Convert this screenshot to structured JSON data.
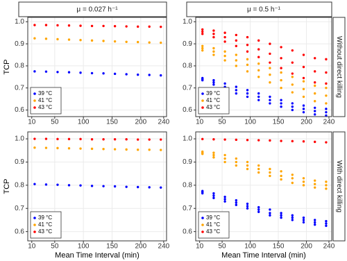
{
  "chart_data": [
    {
      "type": "scatter",
      "title": "μ = 0.027 h⁻¹",
      "y_label": "TCP",
      "xlim": [
        3,
        245
      ],
      "xticks": [
        10,
        50,
        100,
        150,
        200,
        240
      ],
      "ylim": [
        0.57,
        1.02
      ],
      "yticks": [
        0.6,
        0.7,
        0.8,
        0.9,
        {
          "value": 1,
          "label": "1.0"
        }
      ],
      "grid": true,
      "legend": "bottom-left",
      "series": [
        {
          "name": "39 °C",
          "color": "#0000ff",
          "x": [
            15,
            35,
            55,
            75,
            95,
            115,
            135,
            155,
            175,
            195,
            215,
            235
          ],
          "values": [
            0.775,
            0.774,
            0.772,
            0.771,
            0.769,
            0.767,
            0.766,
            0.764,
            0.762,
            0.76,
            0.759,
            0.757
          ]
        },
        {
          "name": "41 °C",
          "color": "#ffa500",
          "x": [
            15,
            35,
            55,
            75,
            95,
            115,
            135,
            155,
            175,
            195,
            215,
            235
          ],
          "values": [
            0.925,
            0.923,
            0.921,
            0.919,
            0.917,
            0.915,
            0.913,
            0.911,
            0.909,
            0.908,
            0.906,
            0.905
          ]
        },
        {
          "name": "43 °C",
          "color": "#ff0000",
          "x": [
            15,
            35,
            55,
            75,
            95,
            115,
            135,
            155,
            175,
            195,
            215,
            235
          ],
          "values": [
            0.985,
            0.985,
            0.984,
            0.983,
            0.982,
            0.981,
            0.981,
            0.98,
            0.979,
            0.978,
            0.978,
            0.977
          ]
        }
      ]
    },
    {
      "type": "scatter",
      "title": "μ = 0.5 h⁻¹",
      "row_label": "Without direct killing",
      "xlim": [
        3,
        245
      ],
      "xticks": [
        10,
        50,
        100,
        150,
        200,
        240
      ],
      "ylim": [
        0.57,
        1.02
      ],
      "yticks": [
        0.6,
        0.7,
        0.8,
        0.9,
        {
          "value": 1,
          "label": "1.0"
        }
      ],
      "grid": true,
      "legend": "bottom-left",
      "series": [
        {
          "name": "39 °C",
          "color": "#0000ff",
          "x": [
            15,
            35,
            55,
            75,
            95,
            115,
            135,
            155,
            175,
            195,
            215,
            235,
            15,
            35,
            55,
            75,
            95,
            115,
            135,
            155,
            175,
            195,
            215,
            235,
            15,
            35,
            55,
            75,
            95,
            115,
            135,
            155,
            175,
            195,
            215,
            235
          ],
          "values": [
            0.745,
            0.735,
            0.72,
            0.705,
            0.69,
            0.675,
            0.66,
            0.645,
            0.63,
            0.62,
            0.61,
            0.605,
            0.74,
            0.725,
            0.705,
            0.69,
            0.675,
            0.66,
            0.645,
            0.63,
            0.615,
            0.605,
            0.595,
            0.59,
            0.735,
            0.715,
            0.695,
            0.675,
            0.66,
            0.645,
            0.63,
            0.615,
            0.6,
            0.59,
            0.58,
            0.575
          ]
        },
        {
          "name": "41 °C",
          "color": "#ffa500",
          "x": [
            15,
            35,
            55,
            75,
            95,
            115,
            135,
            155,
            175,
            195,
            215,
            235,
            15,
            35,
            55,
            75,
            95,
            115,
            135,
            155,
            175,
            195,
            215,
            235,
            15,
            35,
            55,
            75,
            95,
            115,
            135,
            155,
            175,
            195,
            215,
            235
          ],
          "values": [
            0.89,
            0.88,
            0.865,
            0.85,
            0.83,
            0.81,
            0.79,
            0.77,
            0.75,
            0.73,
            0.71,
            0.7,
            0.88,
            0.865,
            0.845,
            0.825,
            0.805,
            0.78,
            0.76,
            0.735,
            0.715,
            0.695,
            0.675,
            0.665,
            0.87,
            0.85,
            0.825,
            0.8,
            0.775,
            0.75,
            0.725,
            0.7,
            0.68,
            0.66,
            0.64,
            0.63
          ]
        },
        {
          "name": "43 °C",
          "color": "#ff0000",
          "x": [
            15,
            35,
            55,
            75,
            95,
            115,
            135,
            155,
            175,
            195,
            215,
            235,
            15,
            35,
            55,
            75,
            95,
            115,
            135,
            155,
            175,
            195,
            215,
            235,
            15,
            35,
            55,
            75,
            95,
            115,
            135,
            155,
            175,
            195,
            215,
            235
          ],
          "values": [
            0.965,
            0.96,
            0.95,
            0.94,
            0.93,
            0.915,
            0.9,
            0.885,
            0.87,
            0.85,
            0.835,
            0.83,
            0.955,
            0.945,
            0.93,
            0.915,
            0.895,
            0.875,
            0.855,
            0.835,
            0.815,
            0.795,
            0.775,
            0.77,
            0.945,
            0.93,
            0.91,
            0.89,
            0.865,
            0.84,
            0.815,
            0.79,
            0.765,
            0.745,
            0.725,
            0.72
          ]
        }
      ]
    },
    {
      "type": "scatter",
      "y_label": "TCP",
      "x_label": "Mean Time Interval (min)",
      "xlim": [
        3,
        245
      ],
      "xticks": [
        10,
        50,
        100,
        150,
        200,
        240
      ],
      "ylim": [
        0.56,
        1.03
      ],
      "yticks": [
        0.6,
        0.7,
        0.8,
        0.9,
        {
          "value": 1,
          "label": "1.0"
        }
      ],
      "grid": true,
      "legend": "bottom-left",
      "series": [
        {
          "name": "39 °C",
          "color": "#0000ff",
          "x": [
            15,
            35,
            55,
            75,
            95,
            115,
            135,
            155,
            175,
            195,
            215,
            235
          ],
          "values": [
            0.805,
            0.803,
            0.802,
            0.8,
            0.799,
            0.797,
            0.796,
            0.795,
            0.793,
            0.792,
            0.791,
            0.79
          ]
        },
        {
          "name": "41 °C",
          "color": "#ffa500",
          "x": [
            15,
            35,
            55,
            75,
            95,
            115,
            135,
            155,
            175,
            195,
            215,
            235
          ],
          "values": [
            0.962,
            0.961,
            0.96,
            0.959,
            0.958,
            0.957,
            0.956,
            0.955,
            0.954,
            0.953,
            0.953,
            0.952
          ]
        },
        {
          "name": "43 °C",
          "color": "#ff0000",
          "x": [
            15,
            35,
            55,
            75,
            95,
            115,
            135,
            155,
            175,
            195,
            215,
            235
          ],
          "values": [
            1,
            1,
            0.999,
            0.999,
            0.999,
            0.998,
            0.998,
            0.998,
            0.998,
            0.997,
            0.997,
            0.997
          ]
        }
      ]
    },
    {
      "type": "scatter",
      "row_label": "With direct killing",
      "x_label": "Mean Time Interval (min)",
      "xlim": [
        3,
        245
      ],
      "xticks": [
        10,
        50,
        100,
        150,
        200,
        240
      ],
      "ylim": [
        0.56,
        1.03
      ],
      "yticks": [
        0.6,
        0.7,
        0.8,
        0.9,
        {
          "value": 1,
          "label": "1.0"
        }
      ],
      "grid": true,
      "legend": "bottom-left",
      "series": [
        {
          "name": "39 °C",
          "color": "#0000ff",
          "x": [
            15,
            35,
            55,
            75,
            95,
            115,
            135,
            155,
            175,
            195,
            215,
            235,
            15,
            35,
            55,
            75,
            95,
            115,
            135,
            155,
            175,
            195,
            215,
            235,
            15,
            35,
            55,
            75,
            95,
            115,
            135,
            155,
            175,
            195,
            215,
            235
          ],
          "values": [
            0.775,
            0.765,
            0.75,
            0.735,
            0.72,
            0.705,
            0.695,
            0.68,
            0.67,
            0.66,
            0.65,
            0.645,
            0.77,
            0.755,
            0.74,
            0.725,
            0.71,
            0.695,
            0.68,
            0.67,
            0.66,
            0.65,
            0.64,
            0.635,
            0.765,
            0.745,
            0.73,
            0.715,
            0.7,
            0.685,
            0.67,
            0.66,
            0.65,
            0.64,
            0.63,
            0.625
          ]
        },
        {
          "name": "41 °C",
          "color": "#ffa500",
          "x": [
            15,
            35,
            55,
            75,
            95,
            115,
            135,
            155,
            175,
            195,
            215,
            235,
            15,
            35,
            55,
            75,
            95,
            115,
            135,
            155,
            175,
            195,
            215,
            235,
            15,
            35,
            55,
            75,
            95,
            115,
            135,
            155,
            175,
            195,
            215,
            235
          ],
          "values": [
            0.945,
            0.94,
            0.93,
            0.915,
            0.9,
            0.885,
            0.87,
            0.86,
            0.845,
            0.83,
            0.82,
            0.815,
            0.94,
            0.93,
            0.915,
            0.9,
            0.885,
            0.87,
            0.855,
            0.84,
            0.83,
            0.815,
            0.805,
            0.8,
            0.935,
            0.92,
            0.9,
            0.885,
            0.87,
            0.855,
            0.84,
            0.825,
            0.81,
            0.8,
            0.79,
            0.785
          ]
        },
        {
          "name": "43 °C",
          "color": "#ff0000",
          "x": [
            15,
            35,
            55,
            75,
            95,
            115,
            135,
            155,
            175,
            195,
            215,
            235
          ],
          "values": [
            0.999,
            0.998,
            0.997,
            0.996,
            0.995,
            0.994,
            0.993,
            0.991,
            0.99,
            0.989,
            0.987,
            0.985
          ]
        }
      ]
    }
  ]
}
